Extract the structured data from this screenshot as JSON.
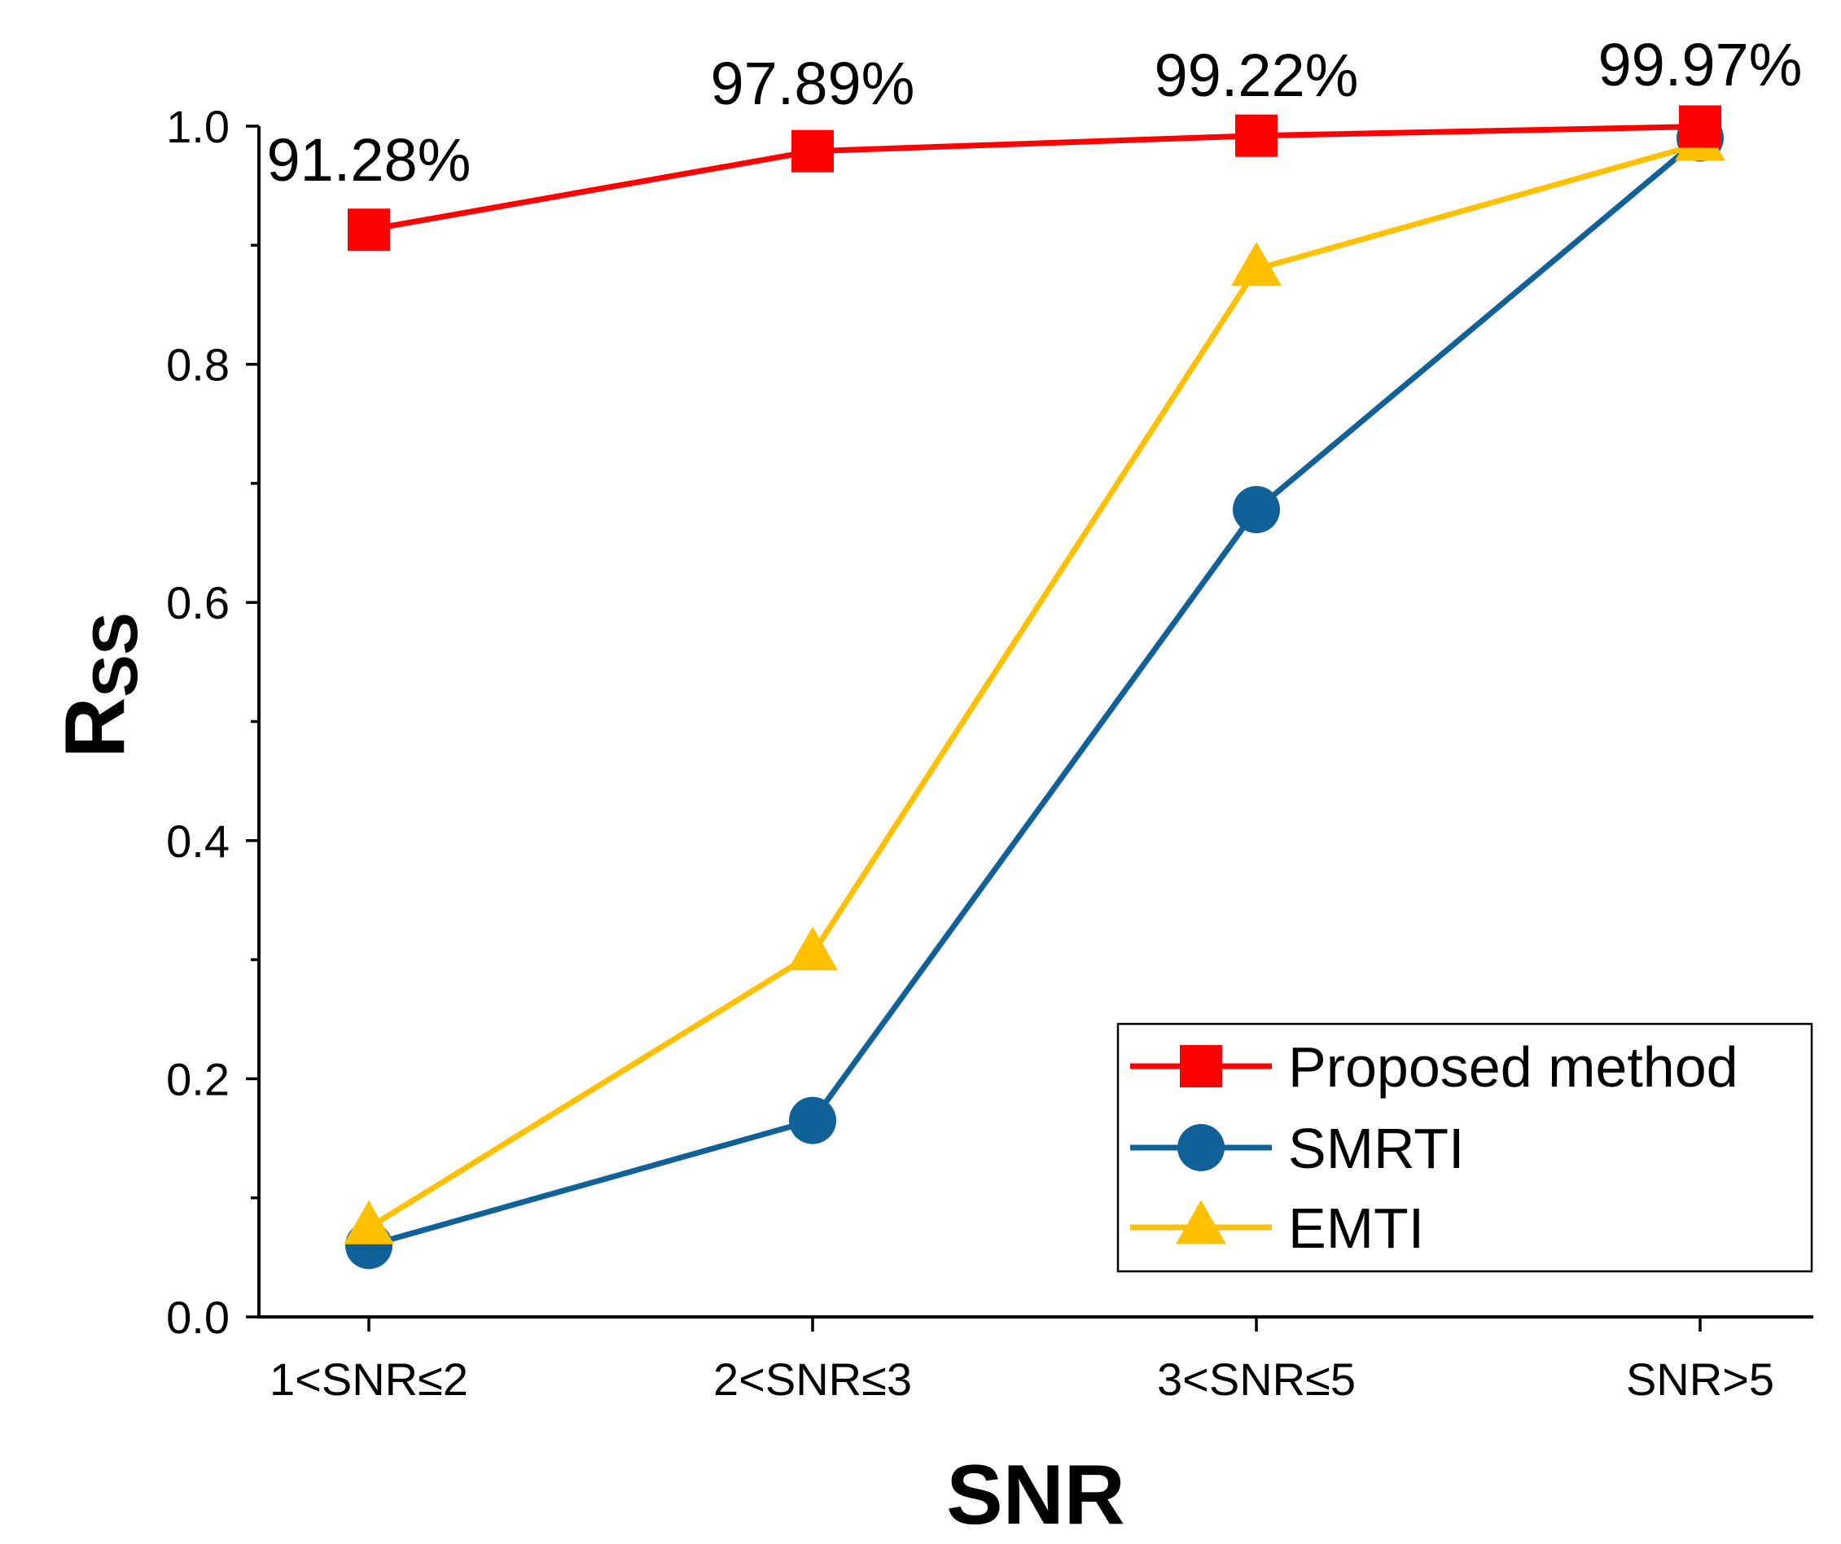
{
  "chart_data": {
    "type": "line",
    "categories": [
      "1<SNR≤2",
      "2<SNR≤3",
      "3<SNR≤5",
      "SNR>5"
    ],
    "xlabel": "SNR",
    "ylabel_main": "R",
    "ylabel_sub": "SS",
    "ylim": [
      0,
      1.0
    ],
    "yticks": [
      "0.0",
      "0.2",
      "0.4",
      "0.6",
      "0.8",
      "1.0"
    ],
    "grid": false,
    "legend_position": "bottom-right",
    "series": [
      {
        "name": "Proposed method",
        "color": "#ff0000",
        "marker": "square",
        "values": [
          0.913,
          0.979,
          0.992,
          0.9997
        ]
      },
      {
        "name": "SMRTI",
        "color": "#106198",
        "marker": "circle",
        "values": [
          0.06,
          0.165,
          0.678,
          0.99
        ]
      },
      {
        "name": "EMTI",
        "color": "#ffc000",
        "marker": "triangle",
        "values": [
          0.075,
          0.305,
          0.88,
          0.985
        ]
      }
    ],
    "annotations": [
      "91.28%",
      "97.89%",
      "99.22%",
      "99.97%"
    ]
  }
}
